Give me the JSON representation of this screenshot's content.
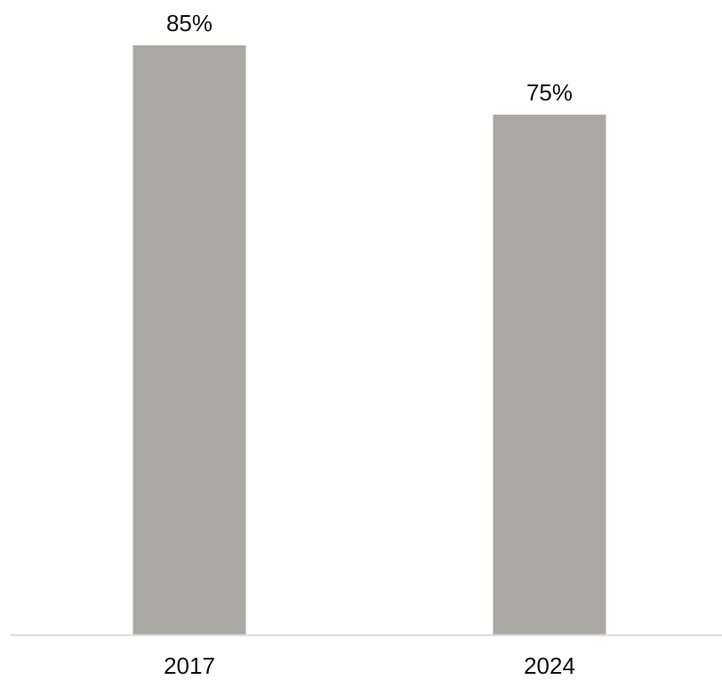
{
  "chart_data": {
    "type": "bar",
    "categories": [
      "2017",
      "2024"
    ],
    "values": [
      85,
      75
    ],
    "value_labels": [
      "85%",
      "75%"
    ],
    "ylim": [
      0,
      100
    ],
    "grid": false,
    "bar_color": "#a9a8a3",
    "axis_color": "#d9d9d9"
  }
}
